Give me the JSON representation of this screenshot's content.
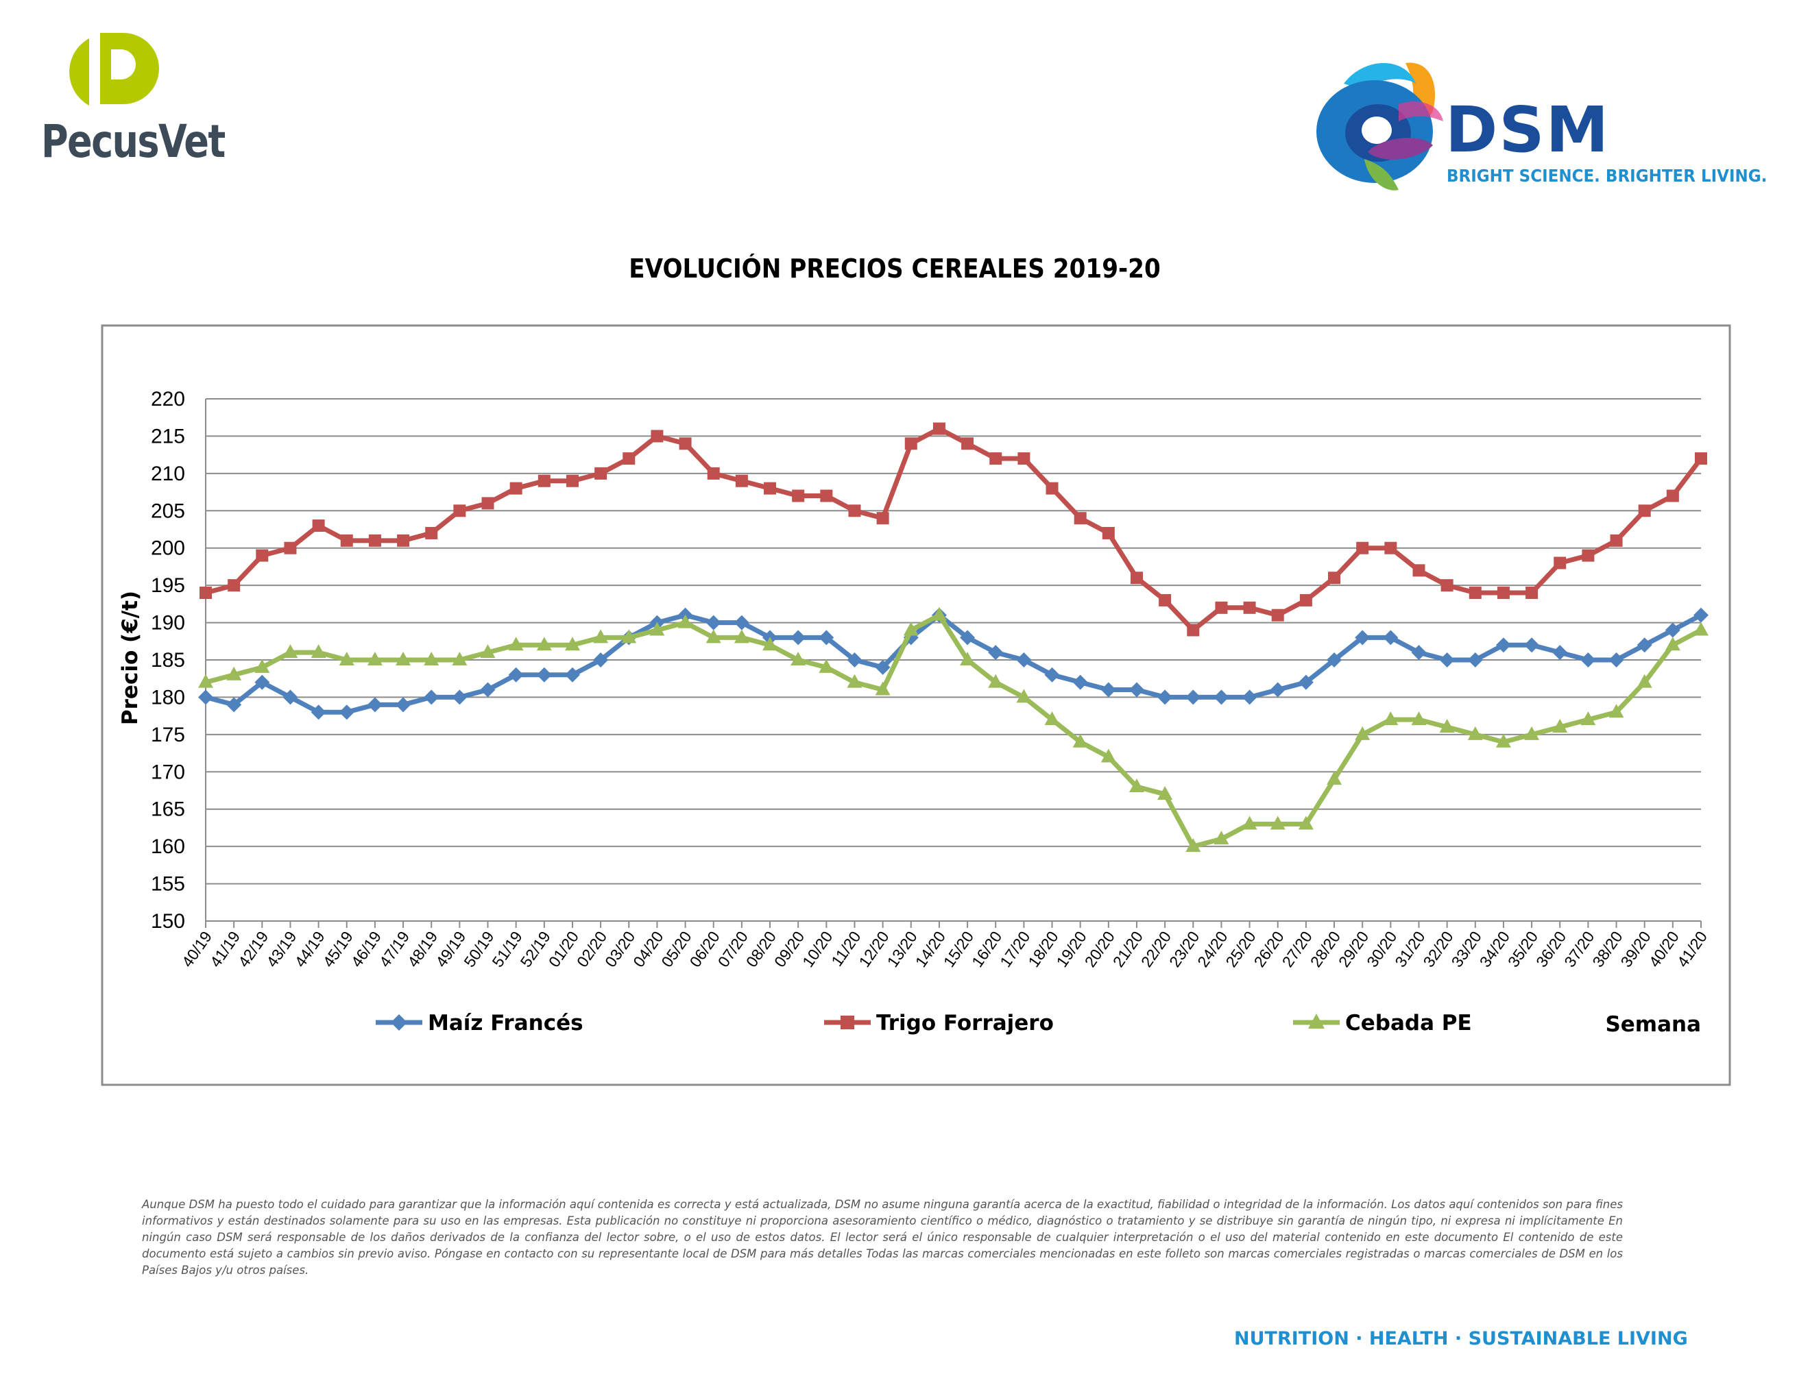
{
  "header": {
    "pecusvet_name": "PecusVet",
    "dsm_name": "DSM",
    "dsm_tagline": "BRIGHT SCIENCE. BRIGHTER LIVING."
  },
  "footer": {
    "disclaimer": "Aunque DSM ha puesto todo el cuidado para garantizar que la información aquí contenida es correcta y está actualizada, DSM no asume ninguna garantía acerca de la exactitud, fiabilidad o integridad de la información. Los datos aquí contenidos son para fines informativos y están destinados solamente para su uso en las empresas. Esta publicación no constituye ni proporciona asesoramiento científico o médico, diagnóstico o tratamiento y se distribuye sin garantía de ningún tipo, ni expresa ni implícitamente En ningún caso DSM será responsable de los daños derivados de la confianza del lector sobre, o el uso de estos datos. El lector será el único responsable de cualquier interpretación o el uso del material contenido en este documento El contenido de este documento está sujeto a cambios sin previo aviso. Póngase en contacto con su representante local de DSM para más detalles Todas las marcas comerciales mencionadas en este folleto son marcas comerciales registradas o marcas comerciales de DSM en los Países Bajos y/u otros países.",
    "slogan": "NUTRITION · HEALTH · SUSTAINABLE LIVING"
  },
  "chart_data": {
    "type": "line",
    "title": "EVOLUCIÓN PRECIOS CEREALES 2019-20",
    "ylabel": "Precio (€/t)",
    "xlabel": "Semana",
    "ylim": [
      150,
      220
    ],
    "ytick_step": 5,
    "grid": true,
    "legend_position": "bottom",
    "categories": [
      "40/19",
      "41/19",
      "42/19",
      "43/19",
      "44/19",
      "45/19",
      "46/19",
      "47/19",
      "48/19",
      "49/19",
      "50/19",
      "51/19",
      "52/19",
      "01/20",
      "02/20",
      "03/20",
      "04/20",
      "05/20",
      "06/20",
      "07/20",
      "08/20",
      "09/20",
      "10/20",
      "11/20",
      "12/20",
      "13/20",
      "14/20",
      "15/20",
      "16/20",
      "17/20",
      "18/20",
      "19/20",
      "20/20",
      "21/20",
      "22/20",
      "23/20",
      "24/20",
      "25/20",
      "26/20",
      "27/20",
      "28/20",
      "29/20",
      "30/20",
      "31/20",
      "32/20",
      "33/20",
      "34/20",
      "35/20",
      "36/20",
      "37/20",
      "38/20",
      "39/20",
      "40/20",
      "41/20"
    ],
    "series": [
      {
        "name": "Maíz Francés",
        "color": "#4f81bd",
        "marker": "diamond",
        "values": [
          180,
          179,
          182,
          180,
          178,
          178,
          179,
          179,
          180,
          180,
          181,
          183,
          183,
          183,
          185,
          188,
          190,
          191,
          190,
          190,
          188,
          188,
          188,
          185,
          184,
          188,
          191,
          188,
          186,
          185,
          183,
          182,
          181,
          181,
          180,
          180,
          180,
          180,
          181,
          182,
          185,
          188,
          188,
          186,
          185,
          185,
          187,
          187,
          186,
          185,
          185,
          187,
          189,
          191
        ]
      },
      {
        "name": "Trigo Forrajero",
        "color": "#c0504d",
        "marker": "square",
        "values": [
          194,
          195,
          199,
          200,
          203,
          201,
          201,
          201,
          202,
          205,
          206,
          208,
          209,
          209,
          210,
          212,
          215,
          214,
          210,
          209,
          208,
          207,
          207,
          205,
          204,
          214,
          216,
          214,
          212,
          212,
          208,
          204,
          202,
          196,
          193,
          189,
          192,
          192,
          191,
          193,
          196,
          200,
          200,
          197,
          195,
          194,
          194,
          194,
          198,
          199,
          201,
          205,
          207,
          212
        ]
      },
      {
        "name": "Cebada PE",
        "color": "#9bbb59",
        "marker": "triangle",
        "values": [
          182,
          183,
          184,
          186,
          186,
          185,
          185,
          185,
          185,
          185,
          186,
          187,
          187,
          187,
          188,
          188,
          189,
          190,
          188,
          188,
          187,
          185,
          184,
          182,
          181,
          189,
          191,
          185,
          182,
          180,
          177,
          174,
          172,
          168,
          167,
          160,
          161,
          163,
          163,
          163,
          169,
          175,
          177,
          177,
          176,
          175,
          174,
          175,
          176,
          177,
          178,
          182,
          187,
          189
        ]
      }
    ]
  }
}
